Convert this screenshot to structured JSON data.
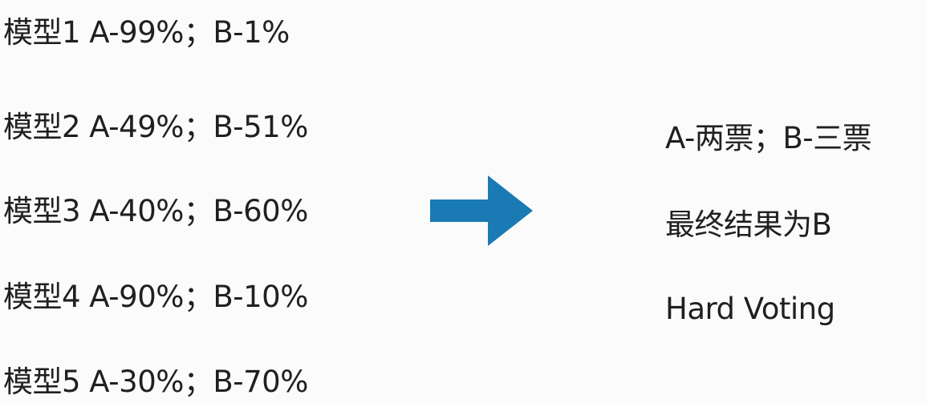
{
  "models": [
    {
      "label": "模型1 A-99%；B-1%"
    },
    {
      "label": "模型2 A-49%；B-51%"
    },
    {
      "label": "模型3 A-40%；B-60%"
    },
    {
      "label": "模型4 A-90%；B-10%"
    },
    {
      "label": "模型5 A-30%；B-70%"
    }
  ],
  "arrow": {
    "icon": "right-arrow-icon",
    "color": "#1a7ab4"
  },
  "result": {
    "votes": "A-两票；B-三票",
    "conclusion": "最终结果为B",
    "method": "Hard Voting"
  }
}
